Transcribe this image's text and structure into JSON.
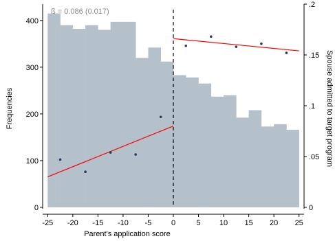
{
  "chart_data": {
    "type": "bar+scatter",
    "annotation": "ß = 0.086 (0.017)",
    "xlabel": "Parent's application score",
    "ylabel_left": "Frequencies",
    "ylabel_right": "Spouse admitted to target program",
    "xlim": [
      -26,
      26
    ],
    "ylim_left": [
      0,
      435
    ],
    "ylim_right": [
      0,
      0.2
    ],
    "xticks": [
      -25,
      -20,
      -15,
      -10,
      -5,
      0,
      5,
      10,
      15,
      20,
      25
    ],
    "yticks_left": [
      0,
      100,
      200,
      300,
      400
    ],
    "yticks_right": [
      0,
      0.05,
      0.1,
      0.15,
      0.2
    ],
    "ytick_labels_right": [
      "0",
      ".05",
      ".1",
      ".15",
      ".2"
    ],
    "cutoff": 0,
    "colors": {
      "bars": "#b4c1cb",
      "dots": "#1d3f63",
      "fit": "#ff0000",
      "cutoff": "#000000"
    },
    "histogram": {
      "bin_width": 2.5,
      "bins": [
        {
          "x0": -25,
          "value": 415
        },
        {
          "x0": -22.5,
          "value": 390
        },
        {
          "x0": -20,
          "value": 382
        },
        {
          "x0": -17.5,
          "value": 390
        },
        {
          "x0": -15,
          "value": 380
        },
        {
          "x0": -12.5,
          "value": 397
        },
        {
          "x0": -10,
          "value": 397
        },
        {
          "x0": -7.5,
          "value": 320
        },
        {
          "x0": -5,
          "value": 342
        },
        {
          "x0": -2.5,
          "value": 312
        },
        {
          "x0": 0,
          "value": 283
        },
        {
          "x0": 2.5,
          "value": 278
        },
        {
          "x0": 5,
          "value": 265
        },
        {
          "x0": 7.5,
          "value": 237
        },
        {
          "x0": 10,
          "value": 240
        },
        {
          "x0": 12.5,
          "value": 192
        },
        {
          "x0": 15,
          "value": 208
        },
        {
          "x0": 17.5,
          "value": 173
        },
        {
          "x0": 20,
          "value": 178
        },
        {
          "x0": 22.5,
          "value": 166
        }
      ]
    },
    "bin_means": [
      {
        "x": -22.5,
        "y": 0.047
      },
      {
        "x": -17.5,
        "y": 0.035
      },
      {
        "x": -12.5,
        "y": 0.054
      },
      {
        "x": -7.5,
        "y": 0.052
      },
      {
        "x": -2.5,
        "y": 0.089
      },
      {
        "x": 2.5,
        "y": 0.159
      },
      {
        "x": 7.5,
        "y": 0.168
      },
      {
        "x": 12.5,
        "y": 0.158
      },
      {
        "x": 17.5,
        "y": 0.161
      },
      {
        "x": 22.5,
        "y": 0.152
      }
    ],
    "fit_lines": [
      {
        "x": [
          -25,
          0
        ],
        "y": [
          0.03,
          0.08
        ]
      },
      {
        "x": [
          0,
          25
        ],
        "y": [
          0.166,
          0.154
        ]
      }
    ]
  }
}
